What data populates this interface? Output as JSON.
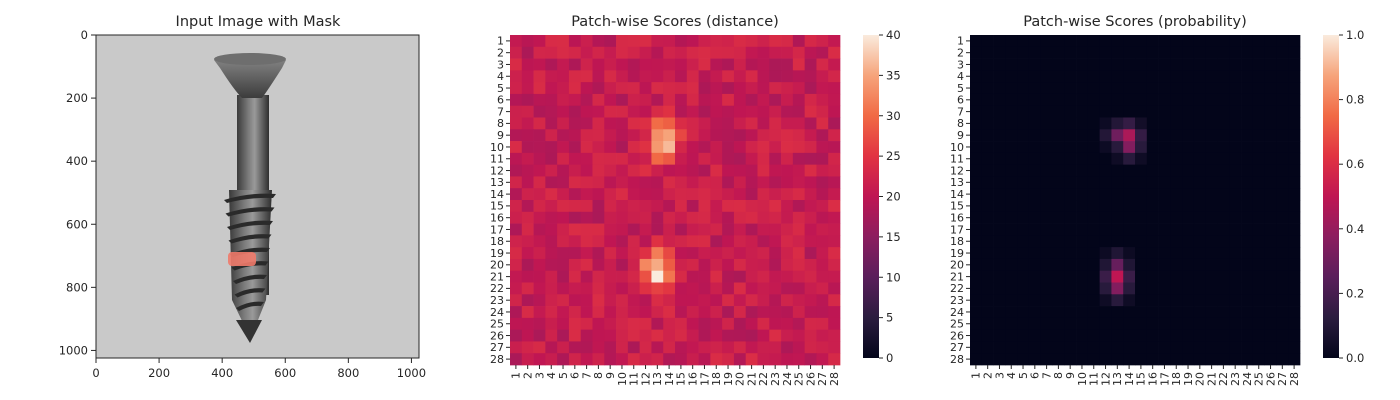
{
  "chart_data": [
    {
      "type": "image",
      "title": "Input Image with Mask",
      "xlim": [
        0,
        1024
      ],
      "ylim": [
        1024,
        0
      ],
      "xticks": [
        0,
        200,
        400,
        600,
        800,
        1000
      ],
      "yticks": [
        0,
        200,
        400,
        600,
        800,
        1000
      ],
      "mask_color": "#f07a6a"
    },
    {
      "type": "heatmap",
      "title": "Patch-wise Scores (distance)",
      "rows": [
        "1",
        "2",
        "3",
        "4",
        "5",
        "6",
        "7",
        "8",
        "9",
        "10",
        "11",
        "12",
        "13",
        "14",
        "15",
        "16",
        "17",
        "18",
        "19",
        "20",
        "21",
        "22",
        "23",
        "24",
        "25",
        "26",
        "27",
        "28"
      ],
      "cols": [
        "1",
        "2",
        "3",
        "4",
        "5",
        "6",
        "7",
        "8",
        "9",
        "10",
        "11",
        "12",
        "13",
        "14",
        "15",
        "16",
        "17",
        "18",
        "19",
        "20",
        "21",
        "22",
        "23",
        "24",
        "25",
        "26",
        "27",
        "28"
      ],
      "vmin": 0,
      "vmax": 40,
      "colorbar_ticks": [
        0,
        5,
        10,
        15,
        20,
        25,
        30,
        35,
        40
      ],
      "background_level": 21,
      "hotspots": [
        {
          "row": 9.5,
          "col": 13.5,
          "value": 40
        },
        {
          "row": 20.5,
          "col": 13,
          "value": 40
        }
      ]
    },
    {
      "type": "heatmap",
      "title": "Patch-wise Scores (probability)",
      "rows": [
        "1",
        "2",
        "3",
        "4",
        "5",
        "6",
        "7",
        "8",
        "9",
        "10",
        "11",
        "12",
        "13",
        "14",
        "15",
        "16",
        "17",
        "18",
        "19",
        "20",
        "21",
        "22",
        "23",
        "24",
        "25",
        "26",
        "27",
        "28"
      ],
      "cols": [
        "1",
        "2",
        "3",
        "4",
        "5",
        "6",
        "7",
        "8",
        "9",
        "10",
        "11",
        "12",
        "13",
        "14",
        "15",
        "16",
        "17",
        "18",
        "19",
        "20",
        "21",
        "22",
        "23",
        "24",
        "25",
        "26",
        "27",
        "28"
      ],
      "vmin": 0.0,
      "vmax": 1.0,
      "colorbar_ticks": [
        "0.0",
        "0.2",
        "0.4",
        "0.6",
        "0.8",
        "1.0"
      ],
      "hotspots": [
        {
          "row": 9,
          "col": 14,
          "value": 0.45
        },
        {
          "row": 10,
          "col": 14,
          "value": 0.35
        },
        {
          "row": 9,
          "col": 13,
          "value": 0.3
        },
        {
          "row": 21,
          "col": 13,
          "value": 0.5
        },
        {
          "row": 22,
          "col": 13,
          "value": 0.35
        },
        {
          "row": 20,
          "col": 13,
          "value": 0.28
        }
      ]
    }
  ]
}
